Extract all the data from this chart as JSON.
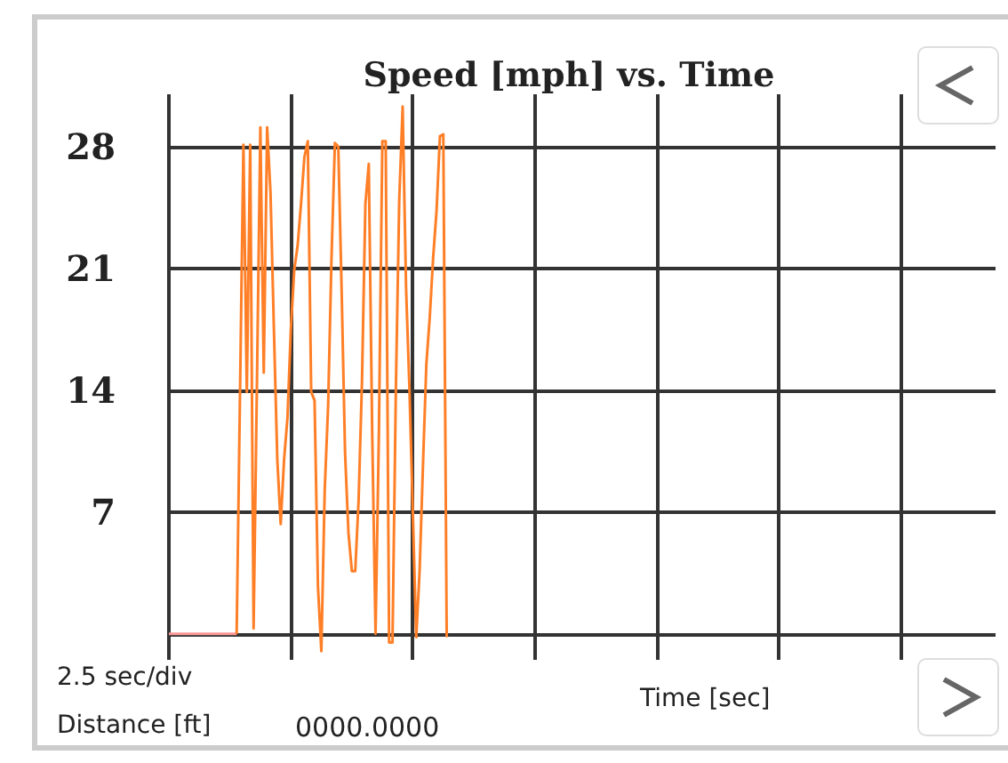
{
  "chart_data": {
    "type": "line",
    "title": "Speed [mph] vs. Time",
    "xlabel": "Time [sec]",
    "annotations": [
      "2.5 sec/div",
      "Distance [ft]",
      "0000.0000"
    ],
    "categories": [
      null,
      null,
      null,
      null,
      null,
      null,
      null,
      null,
      null,
      null,
      null,
      null,
      null,
      null,
      null,
      null,
      null,
      null,
      null,
      null,
      null,
      null,
      null,
      null,
      null,
      null,
      null,
      null,
      null,
      null,
      null,
      null,
      null,
      null,
      null,
      null,
      null,
      null,
      null,
      null,
      null,
      null,
      null,
      null,
      null,
      null,
      null,
      null,
      null,
      null,
      null,
      null,
      null,
      null,
      null,
      null,
      null,
      null,
      null,
      null,
      null,
      null,
      null,
      null,
      null,
      null,
      null,
      null,
      null,
      null,
      null,
      null,
      null,
      null,
      null,
      null,
      null,
      null,
      null,
      null,
      null,
      null,
      null,
      null,
      null,
      null,
      null,
      null,
      null,
      null,
      null,
      null,
      null,
      null,
      null,
      null,
      null,
      null,
      null,
      null,
      null,
      null,
      null,
      null,
      null,
      null,
      null,
      null,
      null,
      null,
      null,
      null,
      null,
      null,
      null,
      null,
      null,
      null,
      null,
      null,
      null,
      null,
      null,
      null,
      null,
      null,
      null,
      null,
      null,
      null,
      null,
      null,
      null,
      null,
      null,
      null,
      null,
      null,
      null,
      null,
      null,
      null,
      null,
      null,
      null,
      null,
      null,
      null,
      null,
      null,
      null,
      null,
      null,
      null,
      null,
      null,
      null,
      null,
      null,
      null,
      null,
      null,
      null,
      null,
      null,
      null,
      null,
      null,
      null,
      null,
      null,
      null,
      null,
      null,
      null,
      null,
      null,
      null,
      null,
      null,
      null,
      null,
      null,
      null,
      null,
      null,
      null,
      null,
      null,
      null,
      null,
      null,
      null,
      null,
      null,
      null,
      null,
      null,
      null,
      null,
      null,
      null,
      null,
      null,
      null,
      null,
      null,
      null,
      null,
      null,
      null,
      null,
      null,
      null,
      null,
      null,
      null,
      null,
      null,
      null,
      null,
      null,
      null,
      null,
      null,
      null,
      null,
      null,
      null,
      null,
      null,
      null,
      null,
      null,
      null,
      null,
      null,
      null,
      null,
      null,
      null,
      null,
      null,
      null,
      null
    ],
    "ylim": [
      -1.5,
      31
    ],
    "yticks": [
      {
        "value": 0,
        "label": null
      },
      7,
      14,
      21,
      28
    ],
    "grid": true,
    "tick_labels": "y",
    "line_style": "solid",
    "series": [
      {
        "color": "#ff9999",
        "values": [
          0,
          0,
          0,
          0,
          0,
          0,
          0,
          0,
          0,
          0,
          0,
          0,
          0,
          0,
          0,
          0,
          0,
          0,
          0,
          0,
          0,
          null,
          null,
          null,
          null,
          null,
          null,
          null,
          null,
          null,
          null,
          null,
          null,
          null,
          null,
          null,
          null,
          null,
          null,
          null,
          null,
          null,
          null,
          null,
          null,
          null,
          null,
          null,
          null,
          null,
          null,
          null,
          null,
          null,
          null,
          null,
          null,
          null,
          null,
          null,
          null,
          null,
          null,
          null,
          null,
          null,
          null,
          null,
          null,
          null,
          null,
          null,
          null,
          null,
          null,
          null,
          null,
          null,
          null,
          null,
          null,
          null,
          null,
          null,
          null,
          null,
          null,
          null,
          null,
          null,
          null,
          null,
          null,
          null,
          null,
          null,
          null,
          null,
          null,
          null,
          null,
          null,
          null,
          null,
          null,
          null,
          null,
          null,
          null,
          null,
          null,
          null,
          null,
          null,
          null,
          null,
          null,
          null,
          null,
          null,
          null,
          null,
          null,
          null,
          null,
          null,
          null,
          null,
          null,
          null,
          null,
          null,
          null,
          null,
          null,
          null,
          null,
          null,
          null,
          null,
          null,
          null,
          null,
          null,
          null,
          null,
          null,
          null,
          null,
          null,
          null,
          null,
          null,
          null,
          null,
          null,
          null,
          null,
          null,
          null,
          null,
          null,
          null,
          null,
          null,
          null,
          null,
          null,
          null,
          null,
          null,
          null,
          null,
          null,
          null,
          null,
          null,
          null,
          null,
          null,
          null,
          null,
          null,
          null,
          null,
          null,
          null,
          null,
          null,
          null,
          null,
          null,
          null,
          null,
          null,
          null,
          null,
          null,
          null,
          null,
          null,
          null,
          null,
          null,
          null,
          null,
          null,
          null,
          null,
          null,
          null,
          null,
          null,
          null,
          null,
          null,
          null,
          null,
          null,
          null,
          null,
          null,
          null,
          null,
          null,
          null,
          null,
          null,
          null,
          null,
          null,
          null,
          null,
          null,
          null,
          null,
          null,
          null,
          null,
          null,
          null,
          null,
          null,
          null,
          null
        ]
      },
      {
        "color": "#ff7f27",
        "values": [
          null,
          null,
          null,
          null,
          null,
          null,
          null,
          null,
          null,
          null,
          null,
          null,
          null,
          null,
          null,
          null,
          null,
          null,
          null,
          null,
          0,
          13.9,
          28.1,
          13.9,
          28.1,
          0.3,
          14.5,
          29.1,
          15,
          29.1,
          25.3,
          17.5,
          10,
          6.3,
          10,
          12.4,
          17.5,
          20.9,
          22.3,
          24.7,
          27.4,
          28.3,
          13.9,
          13.4,
          2.7,
          -1,
          8.3,
          13.1,
          21.6,
          28.2,
          28,
          19.6,
          10.4,
          5.8,
          3.6,
          3.6,
          7.7,
          14.5,
          24.7,
          27,
          11.7,
          0,
          11.7,
          28.3,
          28.3,
          -0.5,
          -0.5,
          14.1,
          25,
          30.3,
          19.9,
          14.1,
          7,
          -0.2,
          3.6,
          9.7,
          15.5,
          18.2,
          21.6,
          24.3,
          28.6,
          28.7,
          -0.2,
          null,
          null,
          null,
          null,
          null,
          null,
          null,
          null,
          null,
          null,
          null,
          null,
          null,
          null,
          null,
          null,
          null,
          null,
          null,
          null,
          null,
          null,
          null,
          null,
          null,
          null,
          null,
          null,
          null,
          null,
          null,
          null,
          null,
          null,
          null,
          null,
          null,
          null,
          null,
          null,
          null,
          null,
          null,
          null,
          null,
          null,
          null,
          null,
          null,
          null,
          null,
          null,
          null,
          null,
          null,
          null,
          null,
          null,
          null,
          null,
          null,
          null,
          null,
          null,
          null,
          null,
          null,
          null,
          null,
          null,
          null,
          null,
          null,
          null,
          null,
          null,
          null,
          null,
          null,
          null,
          null,
          null,
          null,
          null,
          null,
          null,
          null,
          null,
          null,
          null,
          null,
          null,
          null,
          null,
          null,
          null,
          null,
          null,
          null,
          null,
          null,
          null,
          null,
          null,
          null,
          null,
          null,
          null,
          null,
          null,
          null,
          null,
          null,
          null,
          null,
          null,
          null,
          null,
          null,
          null,
          null,
          null,
          null,
          null,
          null,
          null,
          null,
          null,
          null,
          null,
          null,
          null,
          null,
          null,
          null,
          null,
          null,
          null,
          null,
          null,
          null,
          null,
          null,
          null,
          null,
          null,
          null,
          null,
          null,
          null,
          null,
          null,
          null,
          null,
          null,
          null,
          null,
          null,
          null,
          null,
          null,
          null
        ]
      }
    ]
  }
}
